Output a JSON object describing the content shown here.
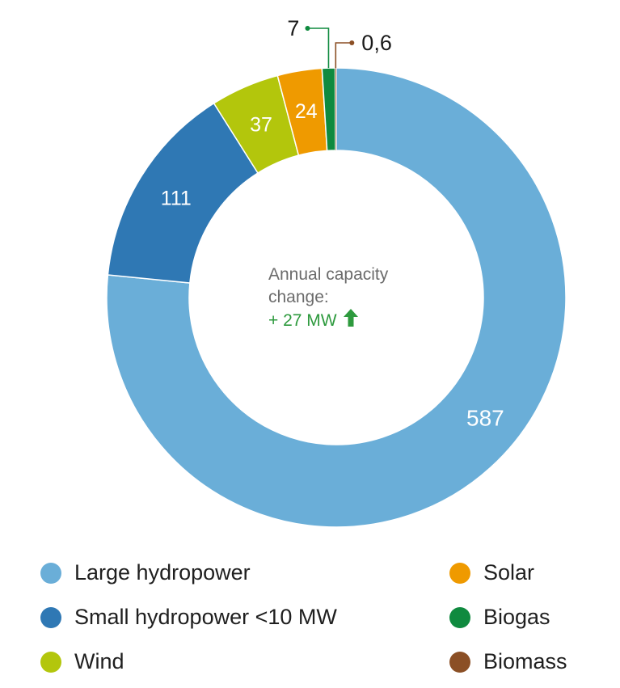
{
  "chart_data": {
    "type": "pie",
    "variant": "donut",
    "series": [
      {
        "name": "Large hydropower",
        "value": 587,
        "label": "587",
        "color": "#6aaed8"
      },
      {
        "name": "Small hydropower <10 MW",
        "value": 111,
        "label": "111",
        "color": "#2f78b4"
      },
      {
        "name": "Wind",
        "value": 37,
        "label": "37",
        "color": "#b3c60c"
      },
      {
        "name": "Solar",
        "value": 24,
        "label": "24",
        "color": "#ef9a00"
      },
      {
        "name": "Biogas",
        "value": 7,
        "label": "7",
        "color": "#0f8a3f"
      },
      {
        "name": "Biomass",
        "value": 0.6,
        "label": "0,6",
        "color": "#8b4f25"
      }
    ],
    "legend_placement": "bottom"
  },
  "center": {
    "line1": "Annual capacity",
    "line2": "change:",
    "change": "+ 27 MW",
    "change_color": "#2e9a3e",
    "icon": "up-arrow-icon"
  }
}
